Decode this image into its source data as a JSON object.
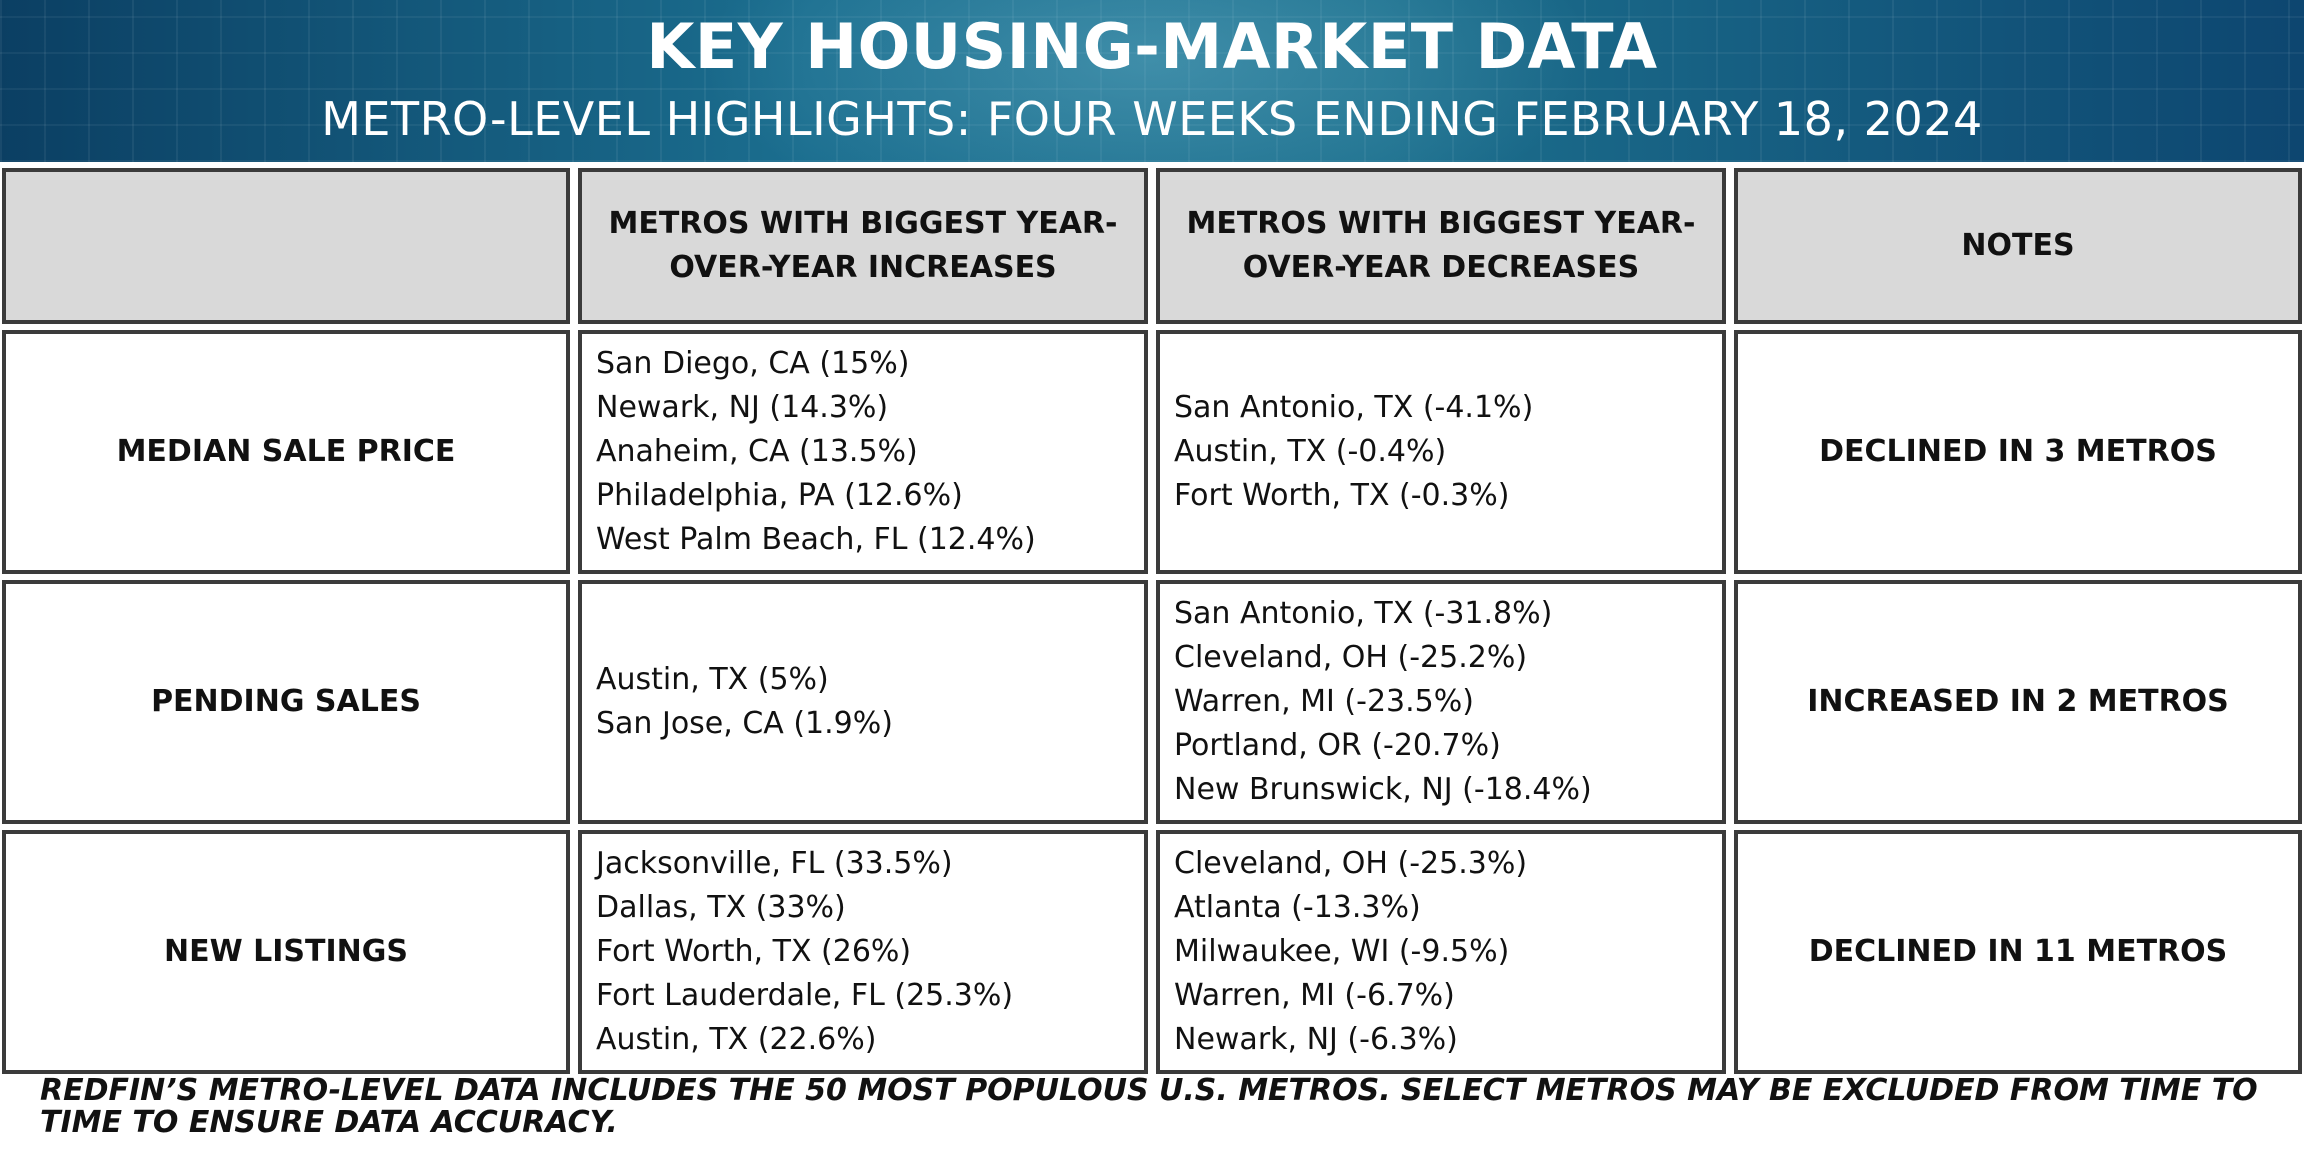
{
  "header": {
    "title": "KEY HOUSING-MARKET DATA",
    "subtitle": "METRO-LEVEL HIGHLIGHTS: FOUR WEEKS ENDING FEBRUARY 18, 2024"
  },
  "table": {
    "headers": [
      "",
      "METROS WITH BIGGEST YEAR-OVER-YEAR INCREASES",
      "METROS WITH BIGGEST YEAR-OVER-YEAR DECREASES",
      "NOTES"
    ],
    "rows": [
      {
        "label": "MEDIAN SALE PRICE",
        "increases": [
          "San Diego, CA (15%)",
          "Newark, NJ (14.3%)",
          "Anaheim, CA (13.5%)",
          "Philadelphia, PA (12.6%)",
          "West Palm Beach, FL (12.4%)"
        ],
        "decreases": [
          "San Antonio, TX (-4.1%)",
          "Austin, TX (-0.4%)",
          "Fort Worth, TX (-0.3%)"
        ],
        "note": "DECLINED IN 3 METROS"
      },
      {
        "label": "PENDING SALES",
        "increases": [
          "Austin, TX (5%)",
          "San Jose, CA (1.9%)"
        ],
        "decreases": [
          "San Antonio, TX (-31.8%)",
          "Cleveland, OH (-25.2%)",
          "Warren, MI (-23.5%)",
          "Portland, OR (-20.7%)",
          "New Brunswick, NJ (-18.4%)"
        ],
        "note": "INCREASED IN 2 METROS"
      },
      {
        "label": "NEW LISTINGS",
        "increases": [
          "Jacksonville, FL (33.5%)",
          "Dallas, TX (33%)",
          "Fort Worth, TX (26%)",
          "Fort Lauderdale, FL (25.3%)",
          "Austin, TX (22.6%)"
        ],
        "decreases": [
          "Cleveland, OH (-25.3%)",
          "Atlanta (-13.3%)",
          "Milwaukee, WI (-9.5%)",
          "Warren, MI (-6.7%)",
          "Newark, NJ (-6.3%)"
        ],
        "note": "DECLINED IN 11 METROS"
      }
    ]
  },
  "footer": {
    "text": "REDFIN’S METRO-LEVEL DATA INCLUDES THE 50 MOST POPULOUS U.S. METROS. SELECT METROS MAY BE EXCLUDED FROM TIME TO TIME TO ENSURE DATA ACCURACY."
  }
}
